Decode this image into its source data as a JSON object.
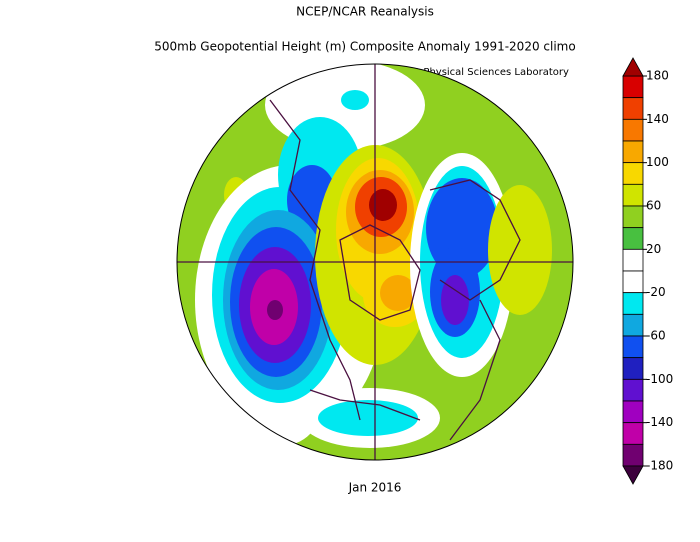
{
  "header": {
    "title": "NCEP/NCAR Reanalysis",
    "subtitle": "500mb Geopotential Height (m) Composite Anomaly 1991-2020 climo",
    "source": "NOAA Physical Sciences Laboratory"
  },
  "footer": {
    "date": "Jan 2016"
  },
  "colorbar": {
    "lim": [
      -180,
      180
    ],
    "ticks": [
      180,
      140,
      100,
      60,
      20,
      -20,
      -60,
      -100,
      -140,
      -180
    ],
    "over_color": "#a00000",
    "under_color": "#3c003c",
    "colors": [
      "#d80000",
      "#f04000",
      "#f87800",
      "#f8a800",
      "#f8d800",
      "#d0e400",
      "#90d020",
      "#48c040",
      "#ffffff",
      "#ffffff",
      "#00e8f0",
      "#10a8e0",
      "#1050f0",
      "#2020c0",
      "#6010d0",
      "#a000c0",
      "#c000a8",
      "#700070"
    ]
  }
}
